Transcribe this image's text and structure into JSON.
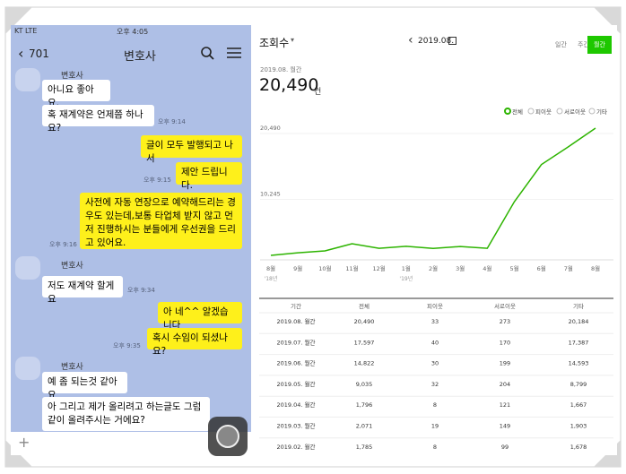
{
  "chat": {
    "status": {
      "carrier": "KT LTE",
      "time": "오후 4:05"
    },
    "header": {
      "back": "701",
      "name": "변호사"
    },
    "groups": [
      {
        "sender": "변호사",
        "messages": [
          "아니요 좋아요.",
          "혹 재계약은 언제쯤 하나요?"
        ],
        "time": "오후 9:14"
      },
      {
        "messages": [
          "글이 모두 발행되고 나서",
          "제안 드립니다."
        ],
        "time": "오후 9:15"
      },
      {
        "messages": [
          "사전에 자동 연장으로 예약해드리는 경우도 있는데,보통 타업체 받지 않고 먼저 진행하시는 분들에게 우선권을 드리고 있어요."
        ],
        "time": "오후 9:16"
      },
      {
        "sender": "변호사",
        "messages": [
          "저도 재계약 할게요"
        ],
        "time": "오후 9:34"
      },
      {
        "messages": [
          "아 네^^ 알겠습니다",
          "혹시 수임이 되셨나요?"
        ],
        "time": "오후 9:35"
      },
      {
        "sender": "변호사",
        "messages": [
          "예 좀 되는것 같아요",
          "아 그리고 제가 올리려고 하는글도 그럼 같이 올려주시는 거에요?"
        ]
      }
    ]
  },
  "stats": {
    "title": "조회수",
    "period": "2019.08.",
    "tabs": [
      "일간",
      "주간",
      "월간"
    ],
    "subtitle": "2019.08. 월간",
    "total": "20,490",
    "unit": "건",
    "table": {
      "header": [
        "기간",
        "전체",
        "피이웃",
        "서로이웃",
        "기타"
      ],
      "rows": [
        [
          "2019.08. 월간",
          "20,490",
          "33",
          "273",
          "20,184"
        ],
        [
          "2019.07. 월간",
          "17,597",
          "40",
          "170",
          "17,387"
        ],
        [
          "2019.06. 월간",
          "14,822",
          "30",
          "199",
          "14,593"
        ],
        [
          "2019.05. 월간",
          "9,035",
          "32",
          "204",
          "8,799"
        ],
        [
          "2019.04. 월간",
          "1,796",
          "8",
          "121",
          "1,667"
        ],
        [
          "2019.03. 월간",
          "2,071",
          "19",
          "149",
          "1,903"
        ],
        [
          "2019.02. 월간",
          "1,785",
          "8",
          "99",
          "1,678"
        ]
      ]
    }
  },
  "chart_data": {
    "type": "line",
    "categories": [
      "8월",
      "9월",
      "10월",
      "11월",
      "12월",
      "1월",
      "2월",
      "3월",
      "4월",
      "5월",
      "6월",
      "7월",
      "8월"
    ],
    "year_labels": [
      "'18년",
      null,
      null,
      null,
      null,
      "'19년",
      null,
      null,
      null,
      null,
      null,
      null,
      null
    ],
    "series": [
      {
        "name": "전체",
        "color": "#2db400",
        "values": [
          700,
          1100,
          1400,
          2500,
          1800,
          2100,
          1785,
          2071,
          1796,
          9035,
          14822,
          17597,
          20490
        ]
      }
    ],
    "other_legend": [
      "피이웃",
      "서로이웃",
      "기타"
    ],
    "ylim": [
      0,
      20490
    ],
    "yticks": [
      {
        "value": 20490,
        "label": "20,490"
      },
      {
        "value": 10245,
        "label": "10,245"
      }
    ],
    "grid": true
  }
}
